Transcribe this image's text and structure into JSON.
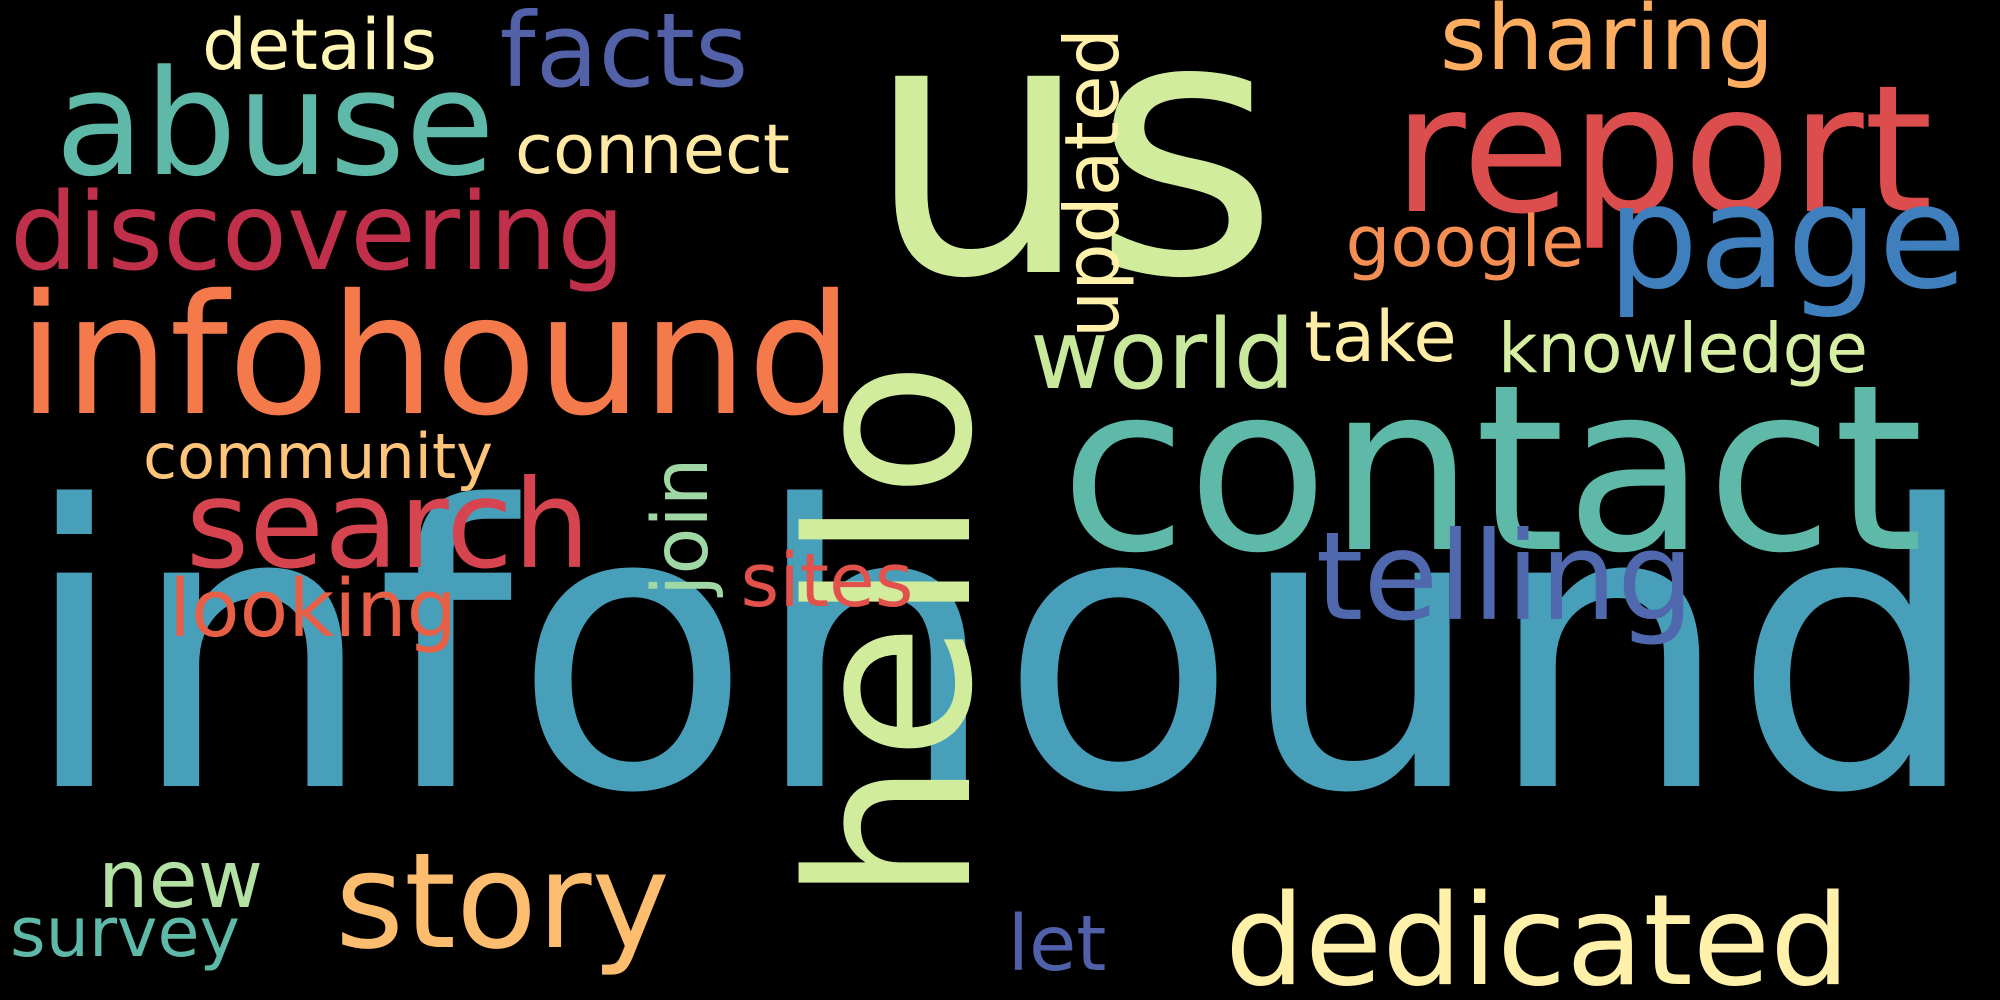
{
  "word_cloud": {
    "background": "#000000",
    "words": [
      {
        "id": "us",
        "text": "us",
        "color": "#d1ec9c",
        "vertical": false
      },
      {
        "id": "infohound",
        "text": "infohound",
        "color": "#489fba",
        "vertical": false
      },
      {
        "id": "hello",
        "text": "hello",
        "color": "#d1ec9c",
        "vertical": true
      },
      {
        "id": "infohound2",
        "text": "infohound",
        "color": "#f47a4c",
        "vertical": false
      },
      {
        "id": "contact",
        "text": "contact",
        "color": "#5fb9a8",
        "vertical": false
      },
      {
        "id": "report",
        "text": "report",
        "color": "#dc4d4d",
        "vertical": false
      },
      {
        "id": "page",
        "text": "page",
        "color": "#3f7fbd",
        "vertical": false
      },
      {
        "id": "abuse",
        "text": "abuse",
        "color": "#5fb9a8",
        "vertical": false
      },
      {
        "id": "facts",
        "text": "facts",
        "color": "#5261a8",
        "vertical": false
      },
      {
        "id": "discovering",
        "text": "discovering",
        "color": "#c0304a",
        "vertical": false
      },
      {
        "id": "search",
        "text": "search",
        "color": "#d6454f",
        "vertical": false
      },
      {
        "id": "telling",
        "text": "telling",
        "color": "#4f68ae",
        "vertical": false
      },
      {
        "id": "dedicated",
        "text": "dedicated",
        "color": "#fff1a9",
        "vertical": false
      },
      {
        "id": "story",
        "text": "story",
        "color": "#fdbd6e",
        "vertical": false
      },
      {
        "id": "world",
        "text": "world",
        "color": "#c8e89c",
        "vertical": false
      },
      {
        "id": "updated",
        "text": "updated",
        "color": "#fff1a9",
        "vertical": true
      },
      {
        "id": "sharing",
        "text": "sharing",
        "color": "#fdae61",
        "vertical": false
      },
      {
        "id": "details",
        "text": "details",
        "color": "#fff6b3",
        "vertical": false
      },
      {
        "id": "connect",
        "text": "connect",
        "color": "#ffe9a3",
        "vertical": false
      },
      {
        "id": "google",
        "text": "google",
        "color": "#f58e53",
        "vertical": false
      },
      {
        "id": "take",
        "text": "take",
        "color": "#ffeda5",
        "vertical": false
      },
      {
        "id": "knowledge",
        "text": "knowledge",
        "color": "#d7efa2",
        "vertical": false
      },
      {
        "id": "community",
        "text": "community",
        "color": "#fdc47a",
        "vertical": false
      },
      {
        "id": "join",
        "text": "join",
        "color": "#9fd8a4",
        "vertical": true
      },
      {
        "id": "sites",
        "text": "sites",
        "color": "#e2514b",
        "vertical": false
      },
      {
        "id": "looking",
        "text": "looking",
        "color": "#e85f47",
        "vertical": false
      },
      {
        "id": "new",
        "text": "new",
        "color": "#b3e0a3",
        "vertical": false
      },
      {
        "id": "survey",
        "text": "survey",
        "color": "#5fb9a8",
        "vertical": false
      },
      {
        "id": "let",
        "text": "let",
        "color": "#5060aa",
        "vertical": false
      }
    ]
  }
}
